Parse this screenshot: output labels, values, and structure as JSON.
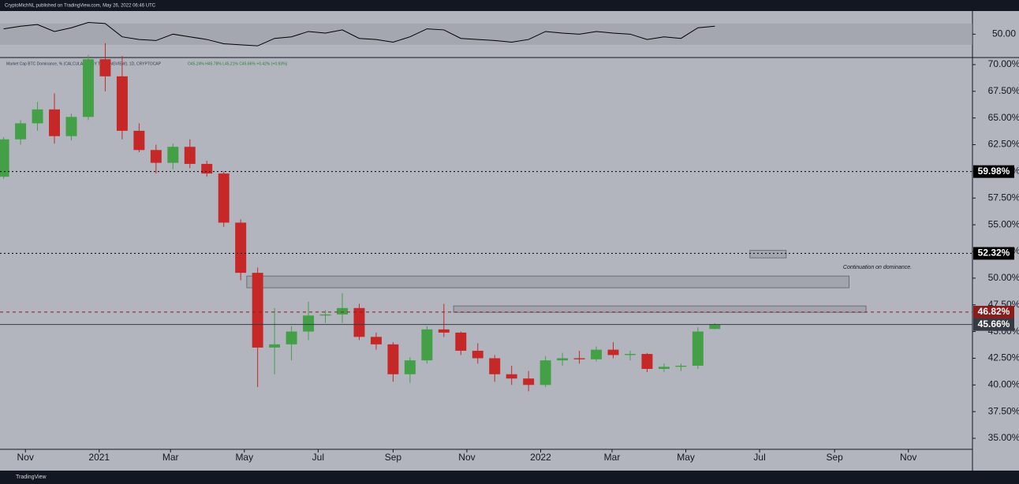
{
  "header": {
    "publisher": "CryptoMichNL published on TradingView.com, May 26, 2022 06:46 UTC",
    "brand": "TradingView"
  },
  "chart_data": {
    "type": "candlestick",
    "legend_text": "Market Cap BTC Dominance, % (CALCULATED BY TRADINGVIEW), 1D, CRYPTOCAP",
    "ohlc_text": "O45.24% H45.78% L45.21% C45.66% +0.42% (+0.93%)",
    "up_color": "#43a047",
    "down_color": "#c62828",
    "x": [
      "2020-10-14",
      "2020-10-28",
      "2020-11-11",
      "2020-11-25",
      "2020-12-09",
      "2020-12-23",
      "2021-01-06",
      "2021-01-20",
      "2021-02-03",
      "2021-02-17",
      "2021-03-03",
      "2021-03-17",
      "2021-03-31",
      "2021-04-14",
      "2021-04-28",
      "2021-05-12",
      "2021-05-26",
      "2021-06-09",
      "2021-06-23",
      "2021-07-07",
      "2021-07-21",
      "2021-08-04",
      "2021-08-18",
      "2021-09-01",
      "2021-09-15",
      "2021-09-29",
      "2021-10-13",
      "2021-10-27",
      "2021-11-10",
      "2021-11-24",
      "2021-12-08",
      "2021-12-22",
      "2022-01-05",
      "2022-01-19",
      "2022-02-02",
      "2022-02-16",
      "2022-03-02",
      "2022-03-16",
      "2022-03-30",
      "2022-04-13",
      "2022-04-27",
      "2022-05-11",
      "2022-05-25"
    ],
    "open": [
      59.5,
      63.0,
      64.5,
      65.8,
      63.3,
      65.1,
      70.5,
      68.9,
      63.8,
      62.0,
      60.8,
      62.3,
      60.7,
      59.8,
      55.2,
      50.5,
      43.5,
      43.8,
      45.0,
      46.5,
      46.6,
      47.2,
      44.5,
      43.8,
      41.0,
      42.3,
      45.2,
      44.9,
      43.2,
      42.5,
      41.0,
      40.6,
      40.0,
      42.3,
      42.5,
      42.4,
      43.3,
      42.8,
      42.9,
      41.5,
      41.7,
      41.8,
      45.24
    ],
    "high": [
      63.2,
      64.8,
      66.5,
      67.3,
      65.4,
      70.9,
      72.0,
      70.8,
      64.5,
      62.5,
      62.6,
      63.0,
      61.0,
      60.0,
      55.5,
      51.0,
      47.2,
      45.5,
      47.8,
      47.0,
      48.6,
      47.6,
      44.9,
      44.0,
      42.6,
      45.5,
      47.6,
      45.0,
      43.9,
      42.8,
      41.8,
      41.3,
      42.7,
      43.0,
      43.2,
      43.6,
      44.0,
      43.2,
      43.0,
      42.0,
      42.0,
      45.4,
      45.78
    ],
    "low": [
      59.3,
      62.5,
      63.8,
      62.6,
      62.9,
      64.8,
      67.5,
      63.0,
      61.8,
      59.8,
      60.2,
      60.3,
      59.5,
      54.8,
      49.8,
      39.8,
      41.0,
      42.3,
      44.2,
      45.8,
      45.8,
      44.2,
      43.3,
      40.3,
      40.2,
      42.0,
      44.5,
      42.8,
      42.0,
      40.3,
      40.0,
      39.4,
      39.8,
      41.8,
      42.0,
      42.2,
      42.5,
      42.3,
      41.2,
      41.2,
      41.3,
      41.5,
      45.21
    ],
    "close": [
      63.0,
      64.5,
      65.8,
      63.3,
      65.1,
      70.5,
      68.9,
      63.8,
      62.0,
      60.8,
      62.3,
      60.7,
      59.8,
      55.2,
      50.5,
      43.5,
      43.8,
      45.0,
      46.5,
      46.6,
      47.2,
      44.5,
      43.8,
      41.0,
      42.3,
      45.2,
      44.9,
      43.2,
      42.5,
      41.0,
      40.6,
      40.0,
      42.3,
      42.5,
      42.4,
      43.3,
      42.8,
      42.9,
      41.5,
      41.7,
      41.8,
      45.0,
      45.66
    ],
    "xlim": [
      "2020-10-11",
      "2022-12-24"
    ],
    "xticks": [
      {
        "value": "2020-11-01",
        "label": "Nov"
      },
      {
        "value": "2021-01-01",
        "label": "2021"
      },
      {
        "value": "2021-03-01",
        "label": "Mar"
      },
      {
        "value": "2021-05-01",
        "label": "May"
      },
      {
        "value": "2021-07-01",
        "label": "Jul"
      },
      {
        "value": "2021-09-01",
        "label": "Sep"
      },
      {
        "value": "2021-11-01",
        "label": "Nov"
      },
      {
        "value": "2022-01-01",
        "label": "2022"
      },
      {
        "value": "2022-03-01",
        "label": "Mar"
      },
      {
        "value": "2022-05-01",
        "label": "May"
      },
      {
        "value": "2022-07-01",
        "label": "Jul"
      },
      {
        "value": "2022-09-01",
        "label": "Sep"
      },
      {
        "value": "2022-11-01",
        "label": "Nov"
      }
    ],
    "ylim": [
      33.97,
      70.66
    ],
    "yticks": [
      {
        "value": 35,
        "label": "35.00%"
      },
      {
        "value": 37.5,
        "label": "37.50%"
      },
      {
        "value": 40,
        "label": "40.00%"
      },
      {
        "value": 42.5,
        "label": "42.50%"
      },
      {
        "value": 45,
        "label": "45.00%"
      },
      {
        "value": 47.5,
        "label": "47.50%"
      },
      {
        "value": 50,
        "label": "50.00%"
      },
      {
        "value": 52.5,
        "label": "52.50%"
      },
      {
        "value": 55,
        "label": "55.00%"
      },
      {
        "value": 57.5,
        "label": "57.50%"
      },
      {
        "value": 60,
        "label": "60.00%"
      },
      {
        "value": 62.5,
        "label": "62.50%"
      },
      {
        "value": 65,
        "label": "65.00%"
      },
      {
        "value": 67.5,
        "label": "67.50%"
      },
      {
        "value": 70,
        "label": "70.00%"
      }
    ],
    "levels": [
      {
        "value": 59.98,
        "label": "59.98%",
        "color": "#000000",
        "dash": "2,3"
      },
      {
        "value": 52.32,
        "label": "52.32%",
        "color": "#000000",
        "dash": "2,3"
      },
      {
        "value": 46.82,
        "label": "46.82%",
        "color": "#8b1c1c",
        "dash": "4,4"
      },
      {
        "value": 45.66,
        "label": "45.66%",
        "color": "#363a45",
        "dash": "none"
      }
    ],
    "zones": [
      {
        "x": [
          "2022-06-23",
          "2022-07-23"
        ],
        "y": [
          51.9,
          52.6
        ]
      },
      {
        "x": [
          "2021-05-03",
          "2022-09-13"
        ],
        "y": [
          49.1,
          50.2
        ]
      },
      {
        "x": [
          "2021-10-21",
          "2022-09-27"
        ],
        "y": [
          46.8,
          47.4
        ]
      }
    ],
    "annotation": {
      "text": "Continuation on dominance.",
      "x": "2022-09-08",
      "y": 51.0
    },
    "rsi": {
      "type": "line",
      "color": "#000000",
      "ylim": [
        6,
        92
      ],
      "band": [
        30,
        70
      ],
      "yticks": [
        {
          "value": 50,
          "label": "50.00"
        }
      ],
      "values": [
        60,
        65,
        68,
        55,
        62,
        72,
        70,
        45,
        40,
        38,
        50,
        45,
        40,
        32,
        30,
        28,
        42,
        45,
        55,
        52,
        58,
        42,
        40,
        35,
        45,
        60,
        58,
        42,
        40,
        38,
        35,
        40,
        55,
        52,
        50,
        55,
        52,
        50,
        40,
        45,
        42,
        62,
        65
      ]
    }
  }
}
